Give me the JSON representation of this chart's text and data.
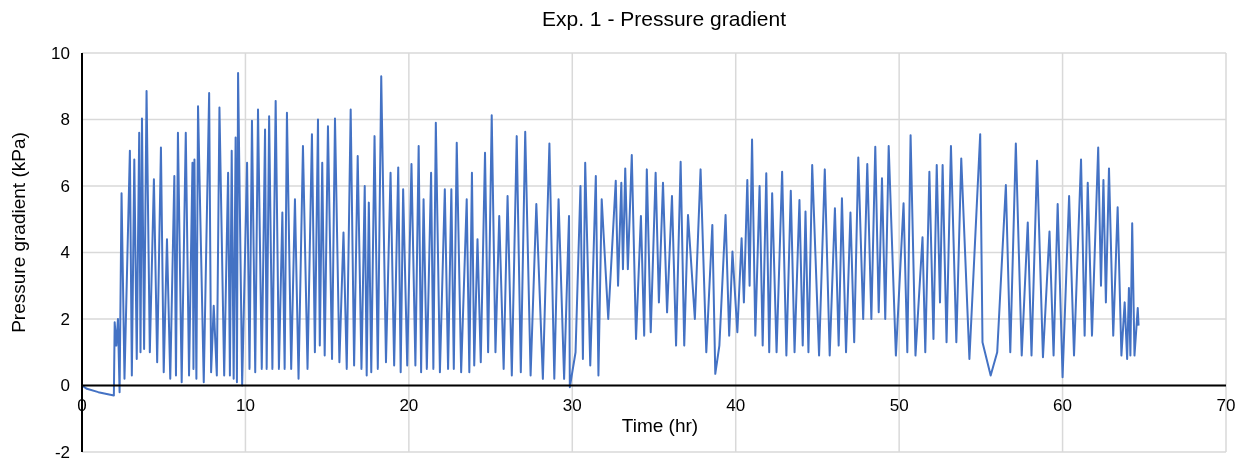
{
  "chart_data": {
    "type": "line",
    "title": "Exp. 1 - Pressure gradient",
    "xlabel": "Time (hr)",
    "ylabel": "Pressure gradient (kPa)",
    "color": "#4472c4",
    "x": [
      0,
      0.3,
      1.0,
      1.95,
      2.0,
      2.1,
      2.2,
      2.3,
      2.42,
      2.6,
      2.93,
      3.05,
      3.2,
      3.35,
      3.5,
      3.58,
      3.67,
      3.8,
      3.95,
      4.15,
      4.4,
      4.6,
      4.83,
      5.0,
      5.2,
      5.4,
      5.65,
      5.75,
      5.87,
      6.1,
      6.35,
      6.55,
      6.76,
      6.82,
      6.88,
      7.0,
      7.1,
      7.45,
      7.78,
      7.9,
      8.06,
      8.25,
      8.41,
      8.7,
      8.94,
      9.05,
      9.16,
      9.28,
      9.4,
      9.48,
      9.55,
      9.8,
      10.1,
      10.25,
      10.4,
      10.6,
      10.77,
      11.0,
      11.2,
      11.3,
      11.45,
      11.65,
      11.85,
      12.05,
      12.26,
      12.4,
      12.54,
      12.8,
      13.03,
      13.25,
      13.52,
      13.8,
      14.07,
      14.25,
      14.44,
      14.55,
      14.7,
      14.85,
      15.05,
      15.3,
      15.48,
      15.75,
      16.0,
      16.2,
      16.44,
      16.65,
      16.87,
      17.1,
      17.3,
      17.42,
      17.55,
      17.7,
      17.9,
      18.1,
      18.31,
      18.6,
      18.88,
      19.1,
      19.35,
      19.5,
      19.65,
      19.9,
      20.16,
      20.4,
      20.6,
      20.75,
      20.9,
      21.1,
      21.36,
      21.5,
      21.65,
      21.9,
      22.2,
      22.4,
      22.6,
      22.75,
      22.93,
      23.2,
      23.54,
      23.7,
      23.86,
      24.0,
      24.2,
      24.4,
      24.66,
      24.85,
      25.07,
      25.3,
      25.53,
      25.8,
      26.04,
      26.3,
      26.6,
      26.85,
      27.12,
      27.45,
      27.8,
      28.2,
      28.6,
      28.9,
      29.16,
      29.5,
      29.8,
      29.85,
      30.2,
      30.5,
      30.65,
      30.79,
      31.1,
      31.44,
      31.6,
      31.8,
      32.2,
      32.66,
      32.8,
      33.0,
      33.1,
      33.24,
      33.4,
      33.64,
      33.9,
      34.2,
      34.4,
      34.56,
      34.8,
      35.1,
      35.3,
      35.55,
      35.8,
      36.1,
      36.35,
      36.63,
      36.85,
      37.08,
      37.5,
      37.85,
      38.2,
      38.57,
      38.75,
      39.0,
      39.38,
      39.6,
      39.8,
      40.1,
      40.36,
      40.5,
      40.71,
      40.85,
      41.0,
      41.2,
      41.46,
      41.65,
      41.87,
      42.05,
      42.23,
      42.5,
      42.84,
      43.1,
      43.37,
      43.6,
      43.9,
      44.1,
      44.27,
      44.45,
      44.68,
      45.1,
      45.45,
      45.75,
      46.07,
      46.3,
      46.5,
      46.75,
      47.02,
      47.25,
      47.5,
      47.8,
      48.05,
      48.3,
      48.54,
      48.75,
      48.95,
      49.15,
      49.36,
      49.8,
      50.27,
      50.5,
      50.7,
      51.0,
      51.43,
      51.6,
      51.85,
      52.1,
      52.3,
      52.5,
      52.66,
      52.9,
      53.17,
      53.5,
      53.8,
      54.3,
      54.96,
      55.1,
      55.6,
      56.0,
      56.53,
      56.8,
      57.14,
      57.5,
      57.87,
      58.1,
      58.44,
      58.8,
      59.2,
      59.45,
      59.7,
      60.0,
      60.4,
      60.7,
      61.13,
      61.35,
      61.54,
      61.8,
      62.18,
      62.35,
      62.5,
      62.65,
      62.84,
      63.1,
      63.37,
      63.6,
      63.8,
      63.95,
      64.06,
      64.15,
      64.26,
      64.4,
      64.6,
      64.65
    ],
    "values": [
      0,
      -0.1,
      -0.2,
      -0.3,
      1.9,
      1.2,
      2.0,
      -0.2,
      5.78,
      0.2,
      7.06,
      0.3,
      6.8,
      0.8,
      7.6,
      1.0,
      8.03,
      1.1,
      8.86,
      1.0,
      6.2,
      0.7,
      7.16,
      0.4,
      4.4,
      0.2,
      6.3,
      0.3,
      7.6,
      0.1,
      7.6,
      0.3,
      6.7,
      0.5,
      6.8,
      0.2,
      8.4,
      0.1,
      8.8,
      0.4,
      2.4,
      0.3,
      8.36,
      0.3,
      6.4,
      0.3,
      7.06,
      0.2,
      7.46,
      0.1,
      9.4,
      0.0,
      6.7,
      0.5,
      7.96,
      0.4,
      8.3,
      0.5,
      7.7,
      0.5,
      8.1,
      0.5,
      8.56,
      0.5,
      5.2,
      0.5,
      8.2,
      0.5,
      5.6,
      0.2,
      7.2,
      0.5,
      7.56,
      1.0,
      8.0,
      1.2,
      6.7,
      0.9,
      7.8,
      0.8,
      8.03,
      0.7,
      4.6,
      0.5,
      8.3,
      0.6,
      6.9,
      0.5,
      6.0,
      0.3,
      5.5,
      0.4,
      7.5,
      0.5,
      9.3,
      0.7,
      6.4,
      0.6,
      6.56,
      0.4,
      5.9,
      0.6,
      6.66,
      0.6,
      7.2,
      0.4,
      5.6,
      0.5,
      6.4,
      0.5,
      7.9,
      0.4,
      5.9,
      0.5,
      5.9,
      0.5,
      7.3,
      0.4,
      5.6,
      0.4,
      6.4,
      0.6,
      4.4,
      0.7,
      7.0,
      1.0,
      8.13,
      1.0,
      5.1,
      0.5,
      5.7,
      0.3,
      7.5,
      0.4,
      7.63,
      0.3,
      5.46,
      0.2,
      7.28,
      0.2,
      5.6,
      0.2,
      5.1,
      -0.05,
      1.0,
      6.0,
      0.8,
      6.7,
      0.6,
      6.3,
      0.3,
      5.6,
      2.0,
      6.16,
      3.0,
      6.1,
      3.5,
      6.53,
      3.5,
      6.93,
      1.4,
      5.1,
      1.5,
      6.5,
      1.6,
      6.4,
      2.5,
      6.1,
      2.2,
      5.7,
      1.2,
      6.73,
      1.2,
      5.13,
      2.0,
      6.5,
      1.0,
      4.83,
      0.35,
      1.2,
      5.13,
      1.5,
      4.03,
      1.6,
      4.43,
      2.5,
      6.18,
      3.0,
      7.4,
      1.5,
      6.0,
      1.2,
      6.38,
      1.0,
      5.78,
      1.0,
      6.43,
      0.9,
      5.86,
      1.0,
      5.58,
      1.2,
      5.23,
      1.0,
      6.63,
      0.9,
      6.5,
      0.9,
      5.33,
      1.2,
      5.63,
      1.0,
      5.2,
      1.3,
      6.86,
      2.0,
      6.66,
      2.0,
      7.18,
      2.2,
      6.23,
      2.0,
      7.2,
      0.9,
      5.48,
      1.0,
      7.53,
      0.9,
      4.46,
      1.0,
      6.43,
      1.4,
      6.63,
      2.5,
      6.63,
      1.3,
      7.2,
      1.3,
      6.83,
      0.8,
      7.56,
      1.3,
      0.3,
      1.0,
      6.03,
      1.0,
      7.28,
      0.9,
      4.9,
      0.9,
      6.76,
      0.85,
      4.63,
      0.9,
      5.46,
      0.25,
      5.7,
      0.9,
      6.8,
      1.5,
      6.1,
      1.5,
      7.16,
      3.0,
      6.18,
      2.5,
      6.53,
      1.5,
      5.36,
      0.9,
      2.5,
      0.8,
      2.93,
      0.9,
      4.88,
      0.9,
      2.33,
      1.8
    ],
    "xlim": [
      0,
      70
    ],
    "ylim": [
      -2,
      10
    ],
    "xticks": [
      0,
      10,
      20,
      30,
      40,
      50,
      60,
      70
    ],
    "yticks": [
      -2,
      0,
      2,
      4,
      6,
      8,
      10
    ],
    "grid": true
  }
}
